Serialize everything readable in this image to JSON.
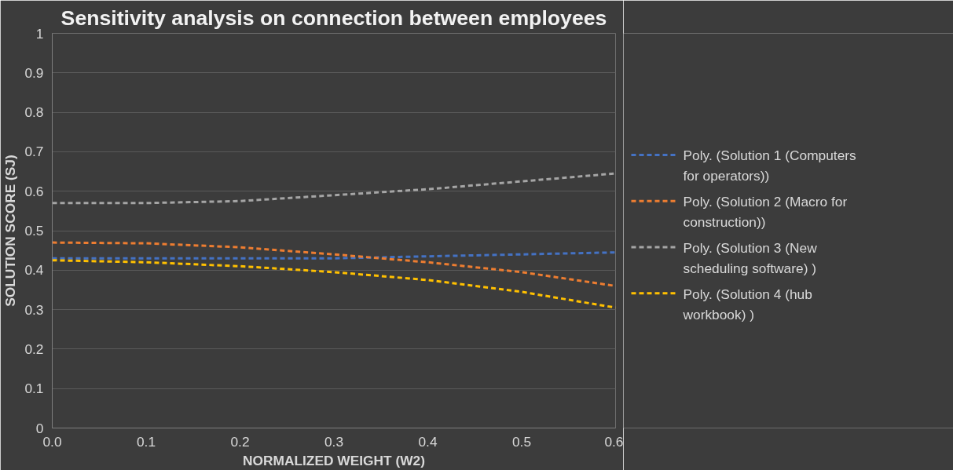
{
  "chart_data": {
    "type": "line",
    "title": "Sensitivity analysis on connection between employees",
    "xlabel": "NORMALIZED WEIGHT (W2)",
    "ylabel": "SOLUTION SCORE (SJ)",
    "x": [
      0.0,
      0.1,
      0.2,
      0.3,
      0.4,
      0.5,
      0.6
    ],
    "series": [
      {
        "name": "Poly. (Solution 1 (Computers for operators))",
        "color": "#4472c4",
        "values": [
          0.43,
          0.43,
          0.43,
          0.43,
          0.435,
          0.44,
          0.445
        ]
      },
      {
        "name": "Poly. (Solution 2 (Macro for construction))",
        "color": "#ed7d31",
        "values": [
          0.47,
          0.468,
          0.458,
          0.44,
          0.42,
          0.395,
          0.36
        ]
      },
      {
        "name": "Poly. (Solution 3 (New scheduling software) )",
        "color": "#a5a5a5",
        "values": [
          0.57,
          0.57,
          0.575,
          0.59,
          0.605,
          0.625,
          0.645
        ]
      },
      {
        "name": "Poly. (Solution 4 (hub workbook) )",
        "color": "#ffc000",
        "values": [
          0.425,
          0.42,
          0.41,
          0.395,
          0.375,
          0.345,
          0.305
        ]
      }
    ],
    "xlim": [
      0.0,
      0.6
    ],
    "ylim": [
      0,
      1
    ],
    "xticks": [
      {
        "value": 0.0,
        "label": "0.0"
      },
      0.1,
      0.2,
      0.3,
      0.4,
      0.5,
      0.6
    ],
    "yticks": [
      0,
      0.1,
      0.2,
      0.3,
      0.4,
      0.5,
      0.6,
      0.7,
      0.8,
      0.9,
      1
    ],
    "grid": "y",
    "legend": "right",
    "line_style": "dashed",
    "marker": "none"
  }
}
